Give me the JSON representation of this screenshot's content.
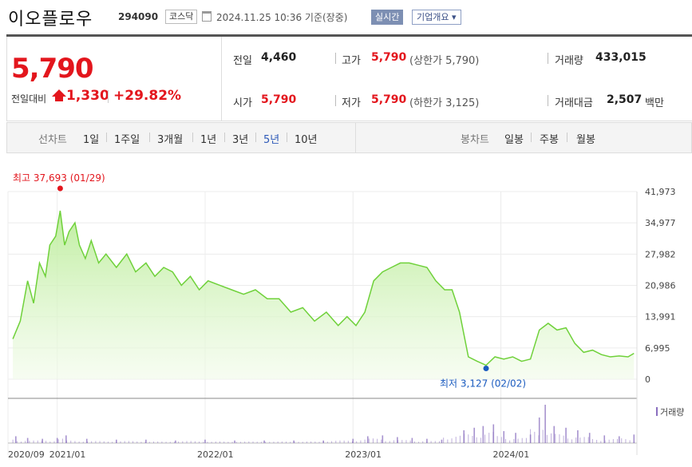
{
  "header": {
    "stock_name": "이오플로우",
    "stock_code": "294090",
    "market": "코스닥",
    "datetime": "2024.11.25 10:36 기준(장중)",
    "realtime_label": "실시간",
    "company_label": "기업개요 ▾"
  },
  "price": {
    "current": "5,790",
    "change_label": "전일대비",
    "change": "1,330",
    "change_pct": "+29.82%"
  },
  "stats": {
    "prev_label": "전일",
    "prev": "4,460",
    "open_label": "시가",
    "open": "5,790",
    "high_label": "고가",
    "high": "5,790",
    "upper_limit_label": "(상한가 5,790)",
    "low_label": "저가",
    "low": "5,790",
    "lower_limit_label": "(하한가 3,125)",
    "volume_label": "거래량",
    "volume": "433,015",
    "amount_label": "거래대금",
    "amount": "2,507",
    "amount_unit": "백만"
  },
  "period_tabs": {
    "line_label": "선차트",
    "line": [
      "1일",
      "1주일",
      "3개월",
      "1년",
      "3년",
      "5년",
      "10년"
    ],
    "active": "5년",
    "candle_label": "봉차트",
    "candle": [
      "일봉",
      "주봉",
      "월봉"
    ]
  },
  "colors": {
    "up": "#e3161d",
    "down": "#1a5bbf",
    "line": "#6fd13a",
    "volume": "#8a6fbf"
  },
  "chart_data": {
    "type": "area",
    "y_ticks": [
      "41,973",
      "34,977",
      "27,982",
      "20,986",
      "13,991",
      "6,995",
      "0"
    ],
    "ylim": [
      0,
      41973
    ],
    "x_ticks": [
      "2020/09",
      "2021/01",
      "2022/01",
      "2023/01",
      "2024/01"
    ],
    "x_range": [
      "2020-09",
      "2024-11"
    ],
    "high_annotation": "최고 37,693 (01/29)",
    "low_annotation": "최저 3,127 (02/02)",
    "volume_label": "거래량",
    "series": [
      {
        "x": [
          2020.7,
          2020.75,
          2020.8,
          2020.84,
          2020.88,
          2020.92,
          2020.95,
          2020.99,
          2021.02,
          2021.05,
          2021.08,
          2021.12,
          2021.15,
          2021.19,
          2021.23,
          2021.28,
          2021.33,
          2021.4,
          2021.47,
          2021.53,
          2021.6,
          2021.66,
          2021.72,
          2021.78,
          2021.84,
          2021.9,
          2021.96,
          2022.02,
          2022.1,
          2022.18,
          2022.26,
          2022.34,
          2022.42,
          2022.5,
          2022.58,
          2022.66,
          2022.74,
          2022.82,
          2022.9,
          2022.96,
          2023.02,
          2023.08,
          2023.14,
          2023.2,
          2023.26,
          2023.32,
          2023.38,
          2023.44,
          2023.5,
          2023.56,
          2023.62,
          2023.67,
          2023.72,
          2023.78,
          2023.84,
          2023.9,
          2023.96,
          2024.02,
          2024.08,
          2024.14,
          2024.2,
          2024.26,
          2024.32,
          2024.38,
          2024.44,
          2024.5,
          2024.56,
          2024.62,
          2024.68,
          2024.74,
          2024.8,
          2024.86,
          2024.9
        ],
        "y": [
          9000,
          13000,
          22000,
          17000,
          26000,
          23000,
          30000,
          32000,
          37693,
          30000,
          33000,
          35000,
          30000,
          27000,
          31000,
          26000,
          28000,
          25000,
          28000,
          24000,
          26000,
          23000,
          25000,
          24000,
          21000,
          23000,
          20000,
          22000,
          21000,
          20000,
          19000,
          20000,
          18000,
          18000,
          15000,
          16000,
          13000,
          15000,
          12000,
          14000,
          12000,
          15000,
          22000,
          24000,
          25000,
          26000,
          26000,
          25500,
          25000,
          22000,
          20000,
          20000,
          15000,
          5000,
          4000,
          3127,
          5000,
          4500,
          5000,
          4000,
          4500,
          11000,
          12500,
          11000,
          11500,
          8000,
          6000,
          6500,
          5500,
          5000,
          5200,
          5000,
          5790
        ]
      }
    ],
    "volume": {
      "x": [
        2020.72,
        2020.8,
        2020.9,
        2021.0,
        2021.06,
        2021.2,
        2021.4,
        2021.6,
        2021.8,
        2022.0,
        2022.2,
        2022.4,
        2022.6,
        2022.8,
        2023.0,
        2023.1,
        2023.2,
        2023.3,
        2023.4,
        2023.5,
        2023.6,
        2023.75,
        2023.82,
        2023.88,
        2023.95,
        2024.02,
        2024.1,
        2024.2,
        2024.26,
        2024.3,
        2024.36,
        2024.44,
        2024.52,
        2024.6,
        2024.7,
        2024.8,
        2024.9
      ],
      "y": [
        8,
        6,
        5,
        6,
        9,
        5,
        4,
        4,
        3,
        4,
        3,
        3,
        3,
        3,
        5,
        8,
        9,
        7,
        6,
        5,
        4,
        15,
        18,
        20,
        22,
        14,
        12,
        10,
        30,
        45,
        20,
        18,
        15,
        12,
        9,
        8,
        10
      ]
    }
  }
}
